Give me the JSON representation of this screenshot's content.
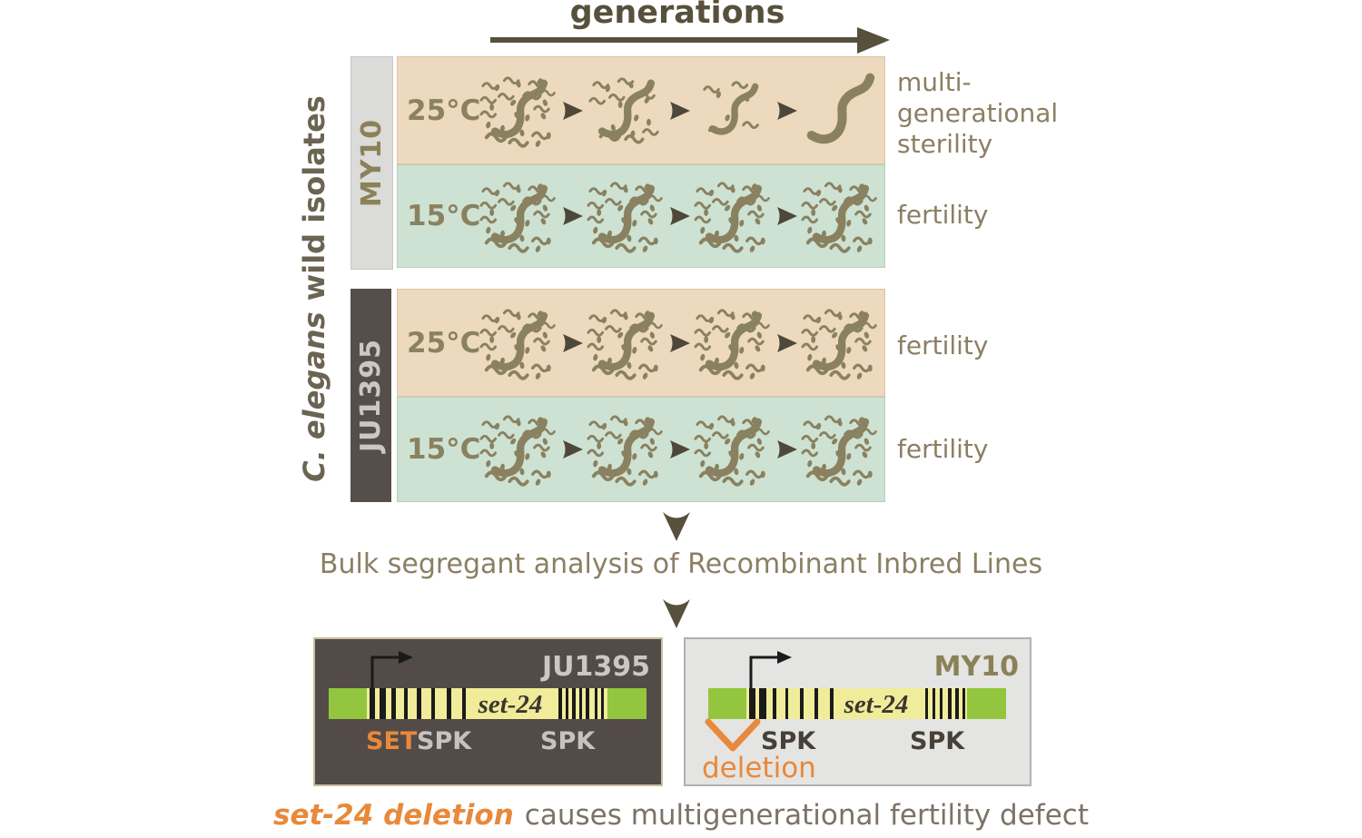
{
  "palette": {
    "tan_row": "#edd9be",
    "green_row": "#cde2d2",
    "worm": "#8a8160",
    "accent_dark": "#57503c",
    "gen_arrow": "#4d4839",
    "label_olive": "#8b7f63",
    "left_title": "#6b6452",
    "sidebar_light_bg": "#dbdbd9",
    "sidebar_light_text": "#8b8159",
    "sidebar_dark_bg": "#564e49",
    "sidebar_dark_text": "#cbc8c3",
    "box_dark_bg": "#534b47",
    "box_dark_border": "#c9bda0",
    "box_light_bg": "#e4e4e2",
    "box_light_border": "#b3b1ac",
    "gene_green": "#93c63e",
    "gene_yellow": "#f0ec9a",
    "stripe": "#1b1b1b",
    "orange": "#e8893b",
    "caption_text": "#7b7365"
  },
  "header": {
    "title": "generations"
  },
  "left_axis": {
    "species": "C. elegans",
    "rest": "wild isolates"
  },
  "strains": [
    {
      "label": "MY10",
      "rows": [
        {
          "temp": "25°C",
          "generations": [
            "full",
            "medium",
            "small",
            "single"
          ],
          "outcome": "multi-generational sterility"
        },
        {
          "temp": "15°C",
          "generations": [
            "full",
            "full",
            "full",
            "full"
          ],
          "outcome": "fertility"
        }
      ]
    },
    {
      "label": "JU1395",
      "rows": [
        {
          "temp": "25°C",
          "generations": [
            "full",
            "full",
            "full",
            "full"
          ],
          "outcome": "fertility"
        },
        {
          "temp": "15°C",
          "generations": [
            "full",
            "full",
            "full",
            "full"
          ],
          "outcome": "fertility"
        }
      ]
    }
  ],
  "analysis": {
    "label": "Bulk segregant analysis of Recombinant Inbred Lines"
  },
  "gene_models": [
    {
      "strain": "JU1395",
      "gene": "set-24",
      "domain_labels": [
        "SET",
        "SPK",
        "SPK"
      ]
    },
    {
      "strain": "MY10",
      "gene": "set-24",
      "domain_labels": [
        "SPK",
        "SPK"
      ],
      "deletion_label": "deletion"
    }
  ],
  "caption": {
    "highlight": "set-24 deletion",
    "rest": "causes multigenerational fertility defect"
  }
}
